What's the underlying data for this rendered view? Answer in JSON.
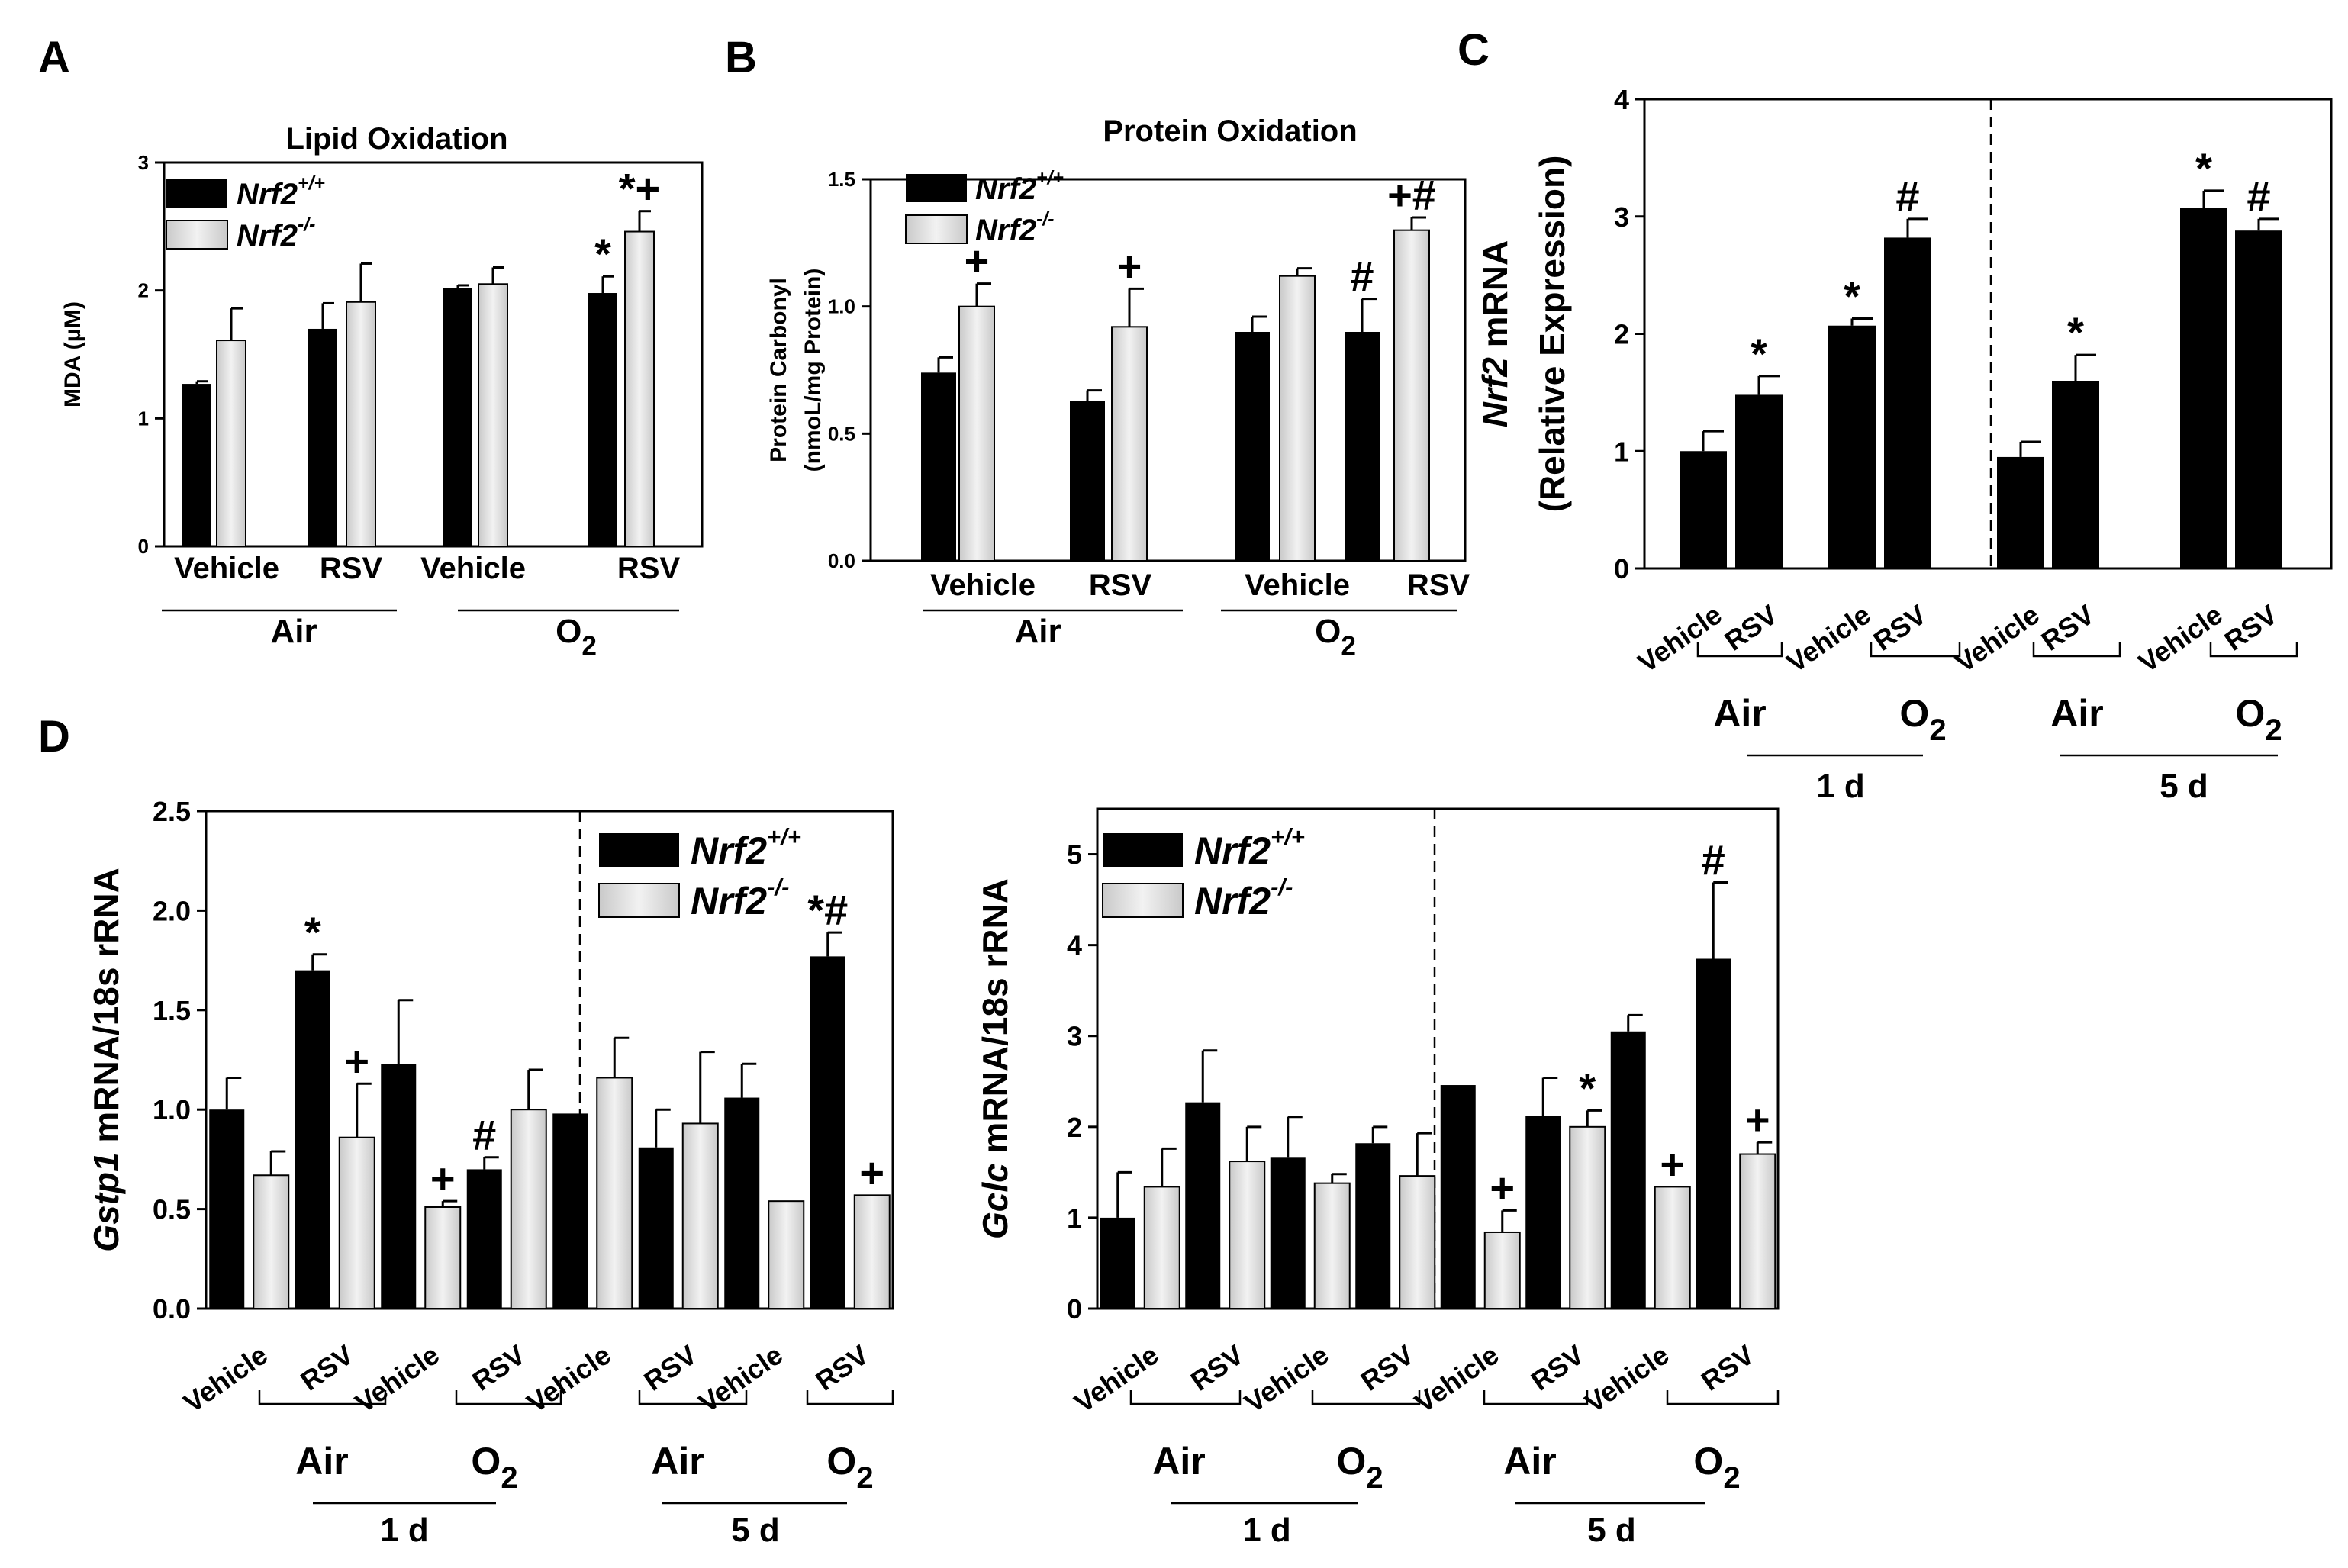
{
  "chart_data": [
    {
      "id": "A",
      "panel_label": "A",
      "type": "bar",
      "title": "Lipid Oxidation",
      "ylabel": "MDA (μM)",
      "ylim": [
        0,
        3
      ],
      "yticks": [
        "0",
        "1",
        "2",
        "3"
      ],
      "categories": [
        "Vehicle",
        "RSV",
        "Vehicle",
        "RSV"
      ],
      "groups": [
        {
          "label": "Air",
          "from": 0,
          "to": 1
        },
        {
          "label": "O2",
          "from": 2,
          "to": 3
        }
      ],
      "legend": {
        "placement": "top-left",
        "entries": [
          "Nrf2+/+",
          "Nrf2-/-"
        ]
      },
      "series": [
        {
          "name": "Nrf2+/+",
          "values": [
            1.27,
            1.7,
            2.02,
            1.98
          ],
          "errors": [
            0.02,
            0.2,
            0.02,
            0.13
          ],
          "marks": [
            "",
            "",
            "",
            "*"
          ]
        },
        {
          "name": "Nrf2-/-",
          "values": [
            1.61,
            1.91,
            2.05,
            2.46
          ],
          "errors": [
            0.25,
            0.3,
            0.13,
            0.16
          ],
          "marks": [
            "",
            "",
            "",
            "*+"
          ]
        }
      ]
    },
    {
      "id": "B",
      "panel_label": "B",
      "type": "bar",
      "title": "Protein Oxidation",
      "ylabel": "Protein Carbonyl (nmoL/mg Protein)",
      "ylim": [
        0,
        1.5
      ],
      "yticks": [
        "0.0",
        "0.5",
        "1.0",
        "1.5"
      ],
      "categories": [
        "Vehicle",
        "RSV",
        "Vehicle",
        "RSV"
      ],
      "groups": [
        {
          "label": "Air",
          "from": 0,
          "to": 1
        },
        {
          "label": "O2",
          "from": 2,
          "to": 3
        }
      ],
      "legend": {
        "placement": "top-left",
        "entries": [
          "Nrf2+/+",
          "Nrf2-/-"
        ]
      },
      "series": [
        {
          "name": "Nrf2+/+",
          "values": [
            0.74,
            0.63,
            0.9,
            0.9
          ],
          "errors": [
            0.06,
            0.04,
            0.06,
            0.13
          ],
          "marks": [
            "",
            "",
            "",
            "#"
          ]
        },
        {
          "name": "Nrf2-/-",
          "values": [
            1.0,
            0.92,
            1.12,
            1.3
          ],
          "errors": [
            0.09,
            0.15,
            0.03,
            0.05
          ],
          "marks": [
            "+",
            "+",
            "",
            "+#"
          ]
        }
      ]
    },
    {
      "id": "C",
      "panel_label": "C",
      "type": "bar",
      "title": "",
      "ylabel_italic": "Nrf2",
      "ylabel_rest": " mRNA",
      "ylabel_line2": "(Relative Expression)",
      "ylim": [
        0,
        4
      ],
      "yticks": [
        "0",
        "1",
        "2",
        "3",
        "4"
      ],
      "categories": [
        "Vehicle",
        "RSV",
        "Vehicle",
        "RSV",
        "Vehicle",
        "RSV",
        "Vehicle",
        "RSV"
      ],
      "groups": [
        {
          "label": "Air",
          "from": 0,
          "to": 1
        },
        {
          "label": "O2",
          "from": 2,
          "to": 3
        },
        {
          "label": "Air",
          "from": 4,
          "to": 5
        },
        {
          "label": "O2",
          "from": 6,
          "to": 7
        }
      ],
      "supergroups": [
        {
          "label": "1 d",
          "from": 0,
          "to": 3
        },
        {
          "label": "5 d",
          "from": 4,
          "to": 7
        }
      ],
      "series": [
        {
          "name": "",
          "values": [
            1.0,
            1.48,
            2.07,
            2.82,
            0.95,
            1.6,
            3.07,
            2.88
          ],
          "errors": [
            0.17,
            0.16,
            0.06,
            0.16,
            0.13,
            0.22,
            0.15,
            0.1
          ],
          "marks": [
            "",
            "*",
            "*",
            "#",
            "",
            "*",
            "*",
            "#"
          ]
        }
      ]
    },
    {
      "id": "D1",
      "panel_label": "D",
      "type": "bar",
      "title": "",
      "ylabel_italic": "Gstp1",
      "ylabel_rest": " mRNA/18s rRNA",
      "ylim": [
        0,
        2.5
      ],
      "yticks": [
        "0.0",
        "0.5",
        "1.0",
        "1.5",
        "2.0",
        "2.5"
      ],
      "categories": [
        "Vehicle",
        "RSV",
        "Vehicle",
        "RSV",
        "Vehicle",
        "RSV",
        "Vehicle",
        "RSV"
      ],
      "groups": [
        {
          "label": "Air",
          "from": 0,
          "to": 1
        },
        {
          "label": "O2",
          "from": 2,
          "to": 3
        },
        {
          "label": "Air",
          "from": 4,
          "to": 5
        },
        {
          "label": "O2",
          "from": 6,
          "to": 7
        }
      ],
      "supergroups": [
        {
          "label": "1 d",
          "from": 0,
          "to": 3
        },
        {
          "label": "5 d",
          "from": 4,
          "to": 7
        }
      ],
      "legend": {
        "placement": "top-right",
        "entries": [
          "Nrf2+/+",
          "Nrf2-/-"
        ]
      },
      "series": [
        {
          "name": "Nrf2+/+",
          "values": [
            1.0,
            1.7,
            1.23,
            0.7,
            0.98,
            0.81,
            1.06,
            1.77
          ],
          "errors": [
            0.16,
            0.08,
            0.32,
            0.06,
            0.0,
            0.19,
            0.17,
            0.12
          ],
          "marks": [
            "",
            "*",
            "",
            "#",
            "",
            "",
            "",
            "*#"
          ]
        },
        {
          "name": "Nrf2-/-",
          "values": [
            0.67,
            0.86,
            0.51,
            1.0,
            1.16,
            0.93,
            0.54,
            0.57
          ],
          "errors": [
            0.12,
            0.27,
            0.03,
            0.2,
            0.2,
            0.36,
            0.0,
            0.0
          ],
          "marks": [
            "",
            "+",
            "+",
            "",
            "",
            "",
            "",
            "+"
          ]
        }
      ]
    },
    {
      "id": "D2",
      "panel_label": "",
      "type": "bar",
      "title": "",
      "ylabel_italic": "Gclc",
      "ylabel_rest": " mRNA/18s rRNA",
      "ylim": [
        0,
        5.5
      ],
      "yticks": [
        "0",
        "1",
        "2",
        "3",
        "4",
        "5"
      ],
      "categories": [
        "Vehicle",
        "RSV",
        "Vehicle",
        "RSV",
        "Vehicle",
        "RSV",
        "Vehicle",
        "RSV"
      ],
      "groups": [
        {
          "label": "Air",
          "from": 0,
          "to": 1
        },
        {
          "label": "O2",
          "from": 2,
          "to": 3
        },
        {
          "label": "Air",
          "from": 4,
          "to": 5
        },
        {
          "label": "O2",
          "from": 6,
          "to": 7
        }
      ],
      "supergroups": [
        {
          "label": "1 d",
          "from": 0,
          "to": 3
        },
        {
          "label": "5 d",
          "from": 4,
          "to": 7
        }
      ],
      "legend": {
        "placement": "top-left",
        "entries": [
          "Nrf2+/+",
          "Nrf2-/-"
        ]
      },
      "series": [
        {
          "name": "Nrf2+/+",
          "values": [
            1.0,
            2.27,
            1.66,
            1.82,
            2.46,
            2.12,
            3.05,
            3.85
          ],
          "errors": [
            0.5,
            0.57,
            0.45,
            0.18,
            0.0,
            0.42,
            0.18,
            0.84
          ],
          "marks": [
            "",
            "",
            "",
            "",
            "",
            "",
            "",
            "#"
          ]
        },
        {
          "name": "Nrf2-/-",
          "values": [
            1.34,
            1.62,
            1.38,
            1.46,
            0.84,
            2.0,
            1.34,
            1.7
          ],
          "errors": [
            0.42,
            0.38,
            0.1,
            0.47,
            0.24,
            0.18,
            0.0,
            0.13
          ],
          "marks": [
            "",
            "",
            "",
            "",
            "+",
            "*",
            "+",
            "+"
          ]
        }
      ]
    }
  ]
}
